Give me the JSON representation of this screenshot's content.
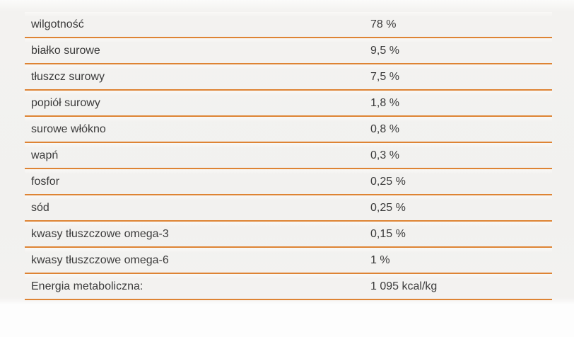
{
  "chart_data": {
    "type": "table",
    "title": "",
    "rows": [
      [
        "wilgotność",
        "78 %"
      ],
      [
        "białko surowe",
        "9,5 %"
      ],
      [
        "tłuszcz surowy",
        "7,5 %"
      ],
      [
        "popiół surowy",
        "1,8 %"
      ],
      [
        "surowe włókno",
        "0,8 %"
      ],
      [
        "wapń",
        "0,3 %"
      ],
      [
        "fosfor",
        "0,25 %"
      ],
      [
        "sód",
        "0,25 %"
      ],
      [
        "kwasy tłuszczowe omega-3",
        "0,15 %"
      ],
      [
        "kwasy tłuszczowe omega-6",
        "1 %"
      ],
      [
        "Energia metaboliczna:",
        "1 095 kcal/kg"
      ]
    ],
    "layout_hints": {
      "grid": "horizontal separators only",
      "separator_style": "2px solid orange under every row",
      "value_column_x": 524
    }
  },
  "colors": {
    "separator": "#de8434",
    "text": "#3b3b3b",
    "band_background": "#f2f1ef",
    "page_background": "#fdfdfd"
  }
}
